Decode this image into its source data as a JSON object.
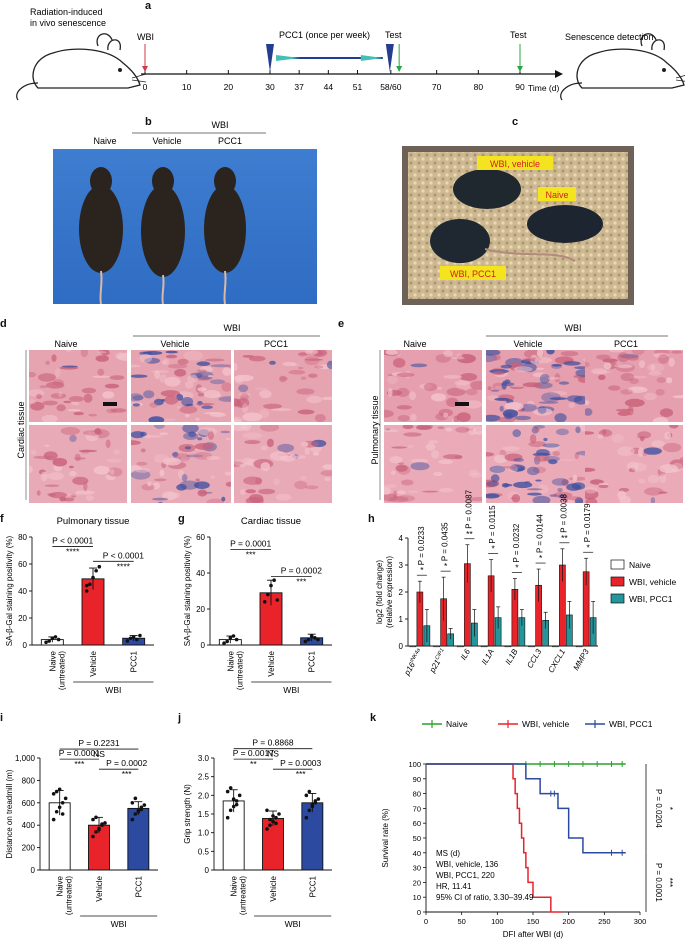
{
  "panels": {
    "a": "a",
    "b": "b",
    "c": "c",
    "d": "d",
    "e": "e",
    "f": "f",
    "g": "g",
    "h": "h",
    "i": "i",
    "j": "j",
    "k": "k"
  },
  "timeline": {
    "left_label_1": "Radiation-induced",
    "left_label_2": "in vivo senescence",
    "right_label": "Senescence detection",
    "wbi": "WBI",
    "pcc1": "PCC1 (once per week)",
    "test1": "Test",
    "test2": "Test",
    "axis_unit": "Time (d)",
    "ticks": [
      "0",
      "10",
      "20",
      "30",
      "37",
      "44",
      "51",
      "58/60",
      "70",
      "80",
      "90"
    ],
    "tick_values": [
      0,
      10,
      20,
      30,
      37,
      44,
      51,
      59,
      70,
      80,
      90
    ]
  },
  "panel_b": {
    "group": "WBI",
    "naive": "Naive",
    "vehicle": "Vehicle",
    "pcc1": "PCC1"
  },
  "panel_c": {
    "wbi_vehicle": "WBI, vehicle",
    "naive": "Naive",
    "wbi_pcc1": "WBI, PCC1"
  },
  "panel_d": {
    "group": "WBI",
    "naive": "Naive",
    "vehicle": "Vehicle",
    "pcc1": "PCC1",
    "row_label": "Cardiac tissue"
  },
  "panel_e": {
    "group": "WBI",
    "naive": "Naive",
    "vehicle": "Vehicle",
    "pcc1": "PCC1",
    "row_label": "Pulmonary tissue"
  },
  "colors": {
    "naive": "#ffffff",
    "vehicle": "#e8232a",
    "pcc1": "#2b4aa0",
    "teal": "#23959b",
    "green": "#2ca02c",
    "pink": "#e8a5b3"
  },
  "chart_data": [
    {
      "panel": "f",
      "type": "bar",
      "title": "Pulmonary tissue",
      "ylabel": "SA-β-Gal staining positivity (%)",
      "categories": [
        "Naive (untreated)",
        "Vehicle",
        "PCC1"
      ],
      "category_lines": [
        [
          "Naive",
          "(untreated)"
        ],
        [
          "Vehicle"
        ],
        [
          "PCC1"
        ]
      ],
      "group_label": "WBI",
      "values": [
        4,
        49,
        5
      ],
      "errors": [
        2,
        8,
        2
      ],
      "points": [
        [
          2,
          3,
          5,
          6,
          4
        ],
        [
          40,
          45,
          50,
          55,
          58,
          44
        ],
        [
          3,
          5,
          6,
          4,
          7
        ]
      ],
      "ylim": [
        0,
        80
      ],
      "yticks": [
        0,
        20,
        40,
        60,
        80
      ],
      "annotations": [
        "P < 0.0001",
        "****",
        "P < 0.0001",
        "****"
      ]
    },
    {
      "panel": "g",
      "type": "bar",
      "title": "Cardiac tissue",
      "ylabel": "SA-β-Gal staining positivity (%)",
      "categories": [
        "Naive (untreated)",
        "Vehicle",
        "PCC1"
      ],
      "category_lines": [
        [
          "Naive",
          "(untreated)"
        ],
        [
          "Vehicle"
        ],
        [
          "PCC1"
        ]
      ],
      "group_label": "WBI",
      "values": [
        3,
        29,
        4
      ],
      "errors": [
        2,
        7,
        2
      ],
      "points": [
        [
          1,
          2,
          4,
          5,
          3
        ],
        [
          24,
          28,
          33,
          36,
          25
        ],
        [
          2,
          3,
          5,
          4,
          3
        ]
      ],
      "ylim": [
        0,
        60
      ],
      "yticks": [
        0,
        20,
        40,
        60
      ],
      "annotations": [
        "P = 0.0001",
        "***",
        "P = 0.0002",
        "***"
      ]
    },
    {
      "panel": "h",
      "type": "bar",
      "ylabel": "log2 (fold change)",
      "ylabel2": "(relative expression)",
      "ylim": [
        0,
        4
      ],
      "yticks": [
        0,
        1,
        2,
        3,
        4
      ],
      "categories": [
        "p16Ink4a",
        "p21Cip1",
        "IL6",
        "IL1A",
        "IL1B",
        "CCL3",
        "CXCL1",
        "MMP3"
      ],
      "category_base": [
        "p16",
        "p21",
        "IL6",
        "IL1A",
        "IL1B",
        "CCL3",
        "CXCL1",
        "MMP3"
      ],
      "category_sup": [
        "INK4a",
        "CIP1",
        "",
        "",
        "",
        "",
        "",
        ""
      ],
      "series": [
        {
          "name": "Naive",
          "values": [
            0,
            0,
            0,
            0,
            0,
            0,
            0,
            0
          ]
        },
        {
          "name": "WBI, vehicle",
          "values": [
            2.0,
            1.75,
            3.05,
            2.6,
            2.1,
            2.25,
            3.0,
            2.75
          ],
          "errors": [
            0.4,
            0.8,
            0.7,
            0.6,
            0.4,
            0.6,
            0.6,
            0.5
          ]
        },
        {
          "name": "WBI, PCC1",
          "values": [
            0.75,
            0.45,
            0.85,
            1.05,
            1.05,
            0.95,
            1.15,
            1.05
          ],
          "errors": [
            0.6,
            0.2,
            0.5,
            0.4,
            0.3,
            0.3,
            0.5,
            0.6
          ]
        }
      ],
      "pvalues": [
        "P = 0.0233",
        "P = 0.0435",
        "P = 0.0087",
        "P = 0.0115",
        "P = 0.0232",
        "P = 0.0144",
        "P = 0.0038",
        "P = 0.0179"
      ],
      "stars": [
        "*",
        "*",
        "**",
        "*",
        "*",
        "*",
        "**",
        "*"
      ]
    },
    {
      "panel": "i",
      "type": "bar",
      "ylabel": "Distance on treadmill (m)",
      "categories": [
        "Naive (untreated)",
        "Vehicle",
        "PCC1"
      ],
      "category_lines": [
        [
          "Naive",
          "(untreated)"
        ],
        [
          "Vehicle"
        ],
        [
          "PCC1"
        ]
      ],
      "group_label": "WBI",
      "values": [
        600,
        400,
        550
      ],
      "errors": [
        110,
        70,
        60
      ],
      "points": [
        [
          450,
          520,
          560,
          600,
          640,
          680,
          700,
          720,
          500
        ],
        [
          300,
          340,
          370,
          400,
          420,
          450,
          470,
          360,
          410
        ],
        [
          450,
          500,
          530,
          560,
          580,
          600,
          640,
          520,
          540
        ]
      ],
      "ylim": [
        0,
        1000
      ],
      "yticks": [
        0,
        200,
        400,
        600,
        800,
        1000
      ],
      "ytick_labels": [
        "0",
        "200",
        "400",
        "600",
        "800",
        "1,000"
      ],
      "annotations": [
        "P = 0.2231",
        "NS",
        "P = 0.0001",
        "***",
        "P = 0.0002",
        "***"
      ]
    },
    {
      "panel": "j",
      "type": "bar",
      "ylabel": "Grip strength (N)",
      "categories": [
        "Naive (untreated)",
        "Vehicle",
        "PCC1"
      ],
      "category_lines": [
        [
          "Naive",
          "(untreated)"
        ],
        [
          "Vehicle"
        ],
        [
          "PCC1"
        ]
      ],
      "group_label": "WBI",
      "values": [
        1.85,
        1.38,
        1.8
      ],
      "errors": [
        0.3,
        0.2,
        0.25
      ],
      "points": [
        [
          1.4,
          1.6,
          1.7,
          1.85,
          2.0,
          2.1,
          2.2,
          1.9,
          1.75
        ],
        [
          1.1,
          1.2,
          1.3,
          1.4,
          1.5,
          1.6,
          1.35,
          1.45,
          1.25
        ],
        [
          1.4,
          1.6,
          1.7,
          1.8,
          1.9,
          2.0,
          2.1,
          1.75,
          1.85
        ]
      ],
      "ylim": [
        0,
        3.0
      ],
      "yticks": [
        0,
        0.5,
        1.0,
        1.5,
        2.0,
        2.5,
        3.0
      ],
      "ytick_labels": [
        "0",
        "0.5",
        "1.0",
        "1.5",
        "2.0",
        "2.5",
        "3.0"
      ],
      "annotations": [
        "P = 0.8868",
        "NS",
        "P = 0.0017",
        "**",
        "P = 0.0003",
        "***"
      ]
    },
    {
      "panel": "k",
      "type": "line",
      "xlabel": "DFI after WBI (d)",
      "ylabel": "Survival rate (%)",
      "xlim": [
        0,
        300
      ],
      "xticks": [
        0,
        50,
        100,
        150,
        200,
        250,
        300
      ],
      "ylim": [
        0,
        100
      ],
      "yticks": [
        0,
        10,
        20,
        30,
        40,
        50,
        60,
        70,
        80,
        90,
        100
      ],
      "series": [
        {
          "name": "Naive",
          "x": [
            0,
            280
          ],
          "y": [
            100,
            100
          ],
          "censor_x": [
            140,
            160,
            180,
            200,
            220,
            240,
            260,
            275
          ]
        },
        {
          "name": "WBI, vehicle",
          "x": [
            0,
            120,
            122,
            125,
            128,
            131,
            134,
            137,
            140,
            143,
            150,
            160,
            175,
            190
          ],
          "y": [
            100,
            100,
            90,
            80,
            70,
            60,
            50,
            40,
            30,
            20,
            10,
            10,
            0,
            0
          ]
        },
        {
          "name": "WBI, PCC1",
          "x": [
            0,
            130,
            140,
            160,
            185,
            200,
            220,
            280
          ],
          "y": [
            100,
            100,
            90,
            80,
            70,
            50,
            40,
            40
          ],
          "censor_x": [
            175,
            180,
            260,
            275
          ]
        }
      ],
      "pvalues": [
        "P = 0.0204",
        "*",
        "P = 0.0001",
        "***"
      ],
      "stats": [
        "MS (d)",
        "WBI, vehicle, 136",
        "WBI, PCC1, 220",
        "HR, 11.41",
        "95% CI of ratio, 3.30–39.49"
      ]
    }
  ]
}
